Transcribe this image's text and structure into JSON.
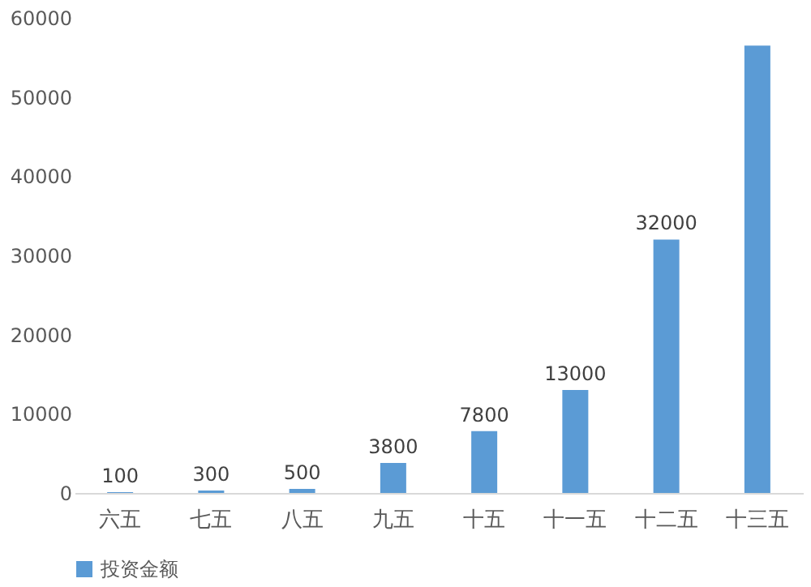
{
  "chart_data": {
    "type": "bar",
    "categories": [
      "六五",
      "七五",
      "八五",
      "九五",
      "十五",
      "十一五",
      "十二五",
      "十三五"
    ],
    "series": [
      {
        "name": "投资金额",
        "color": "#5b9bd5",
        "values": [
          100,
          300,
          500,
          3800,
          7800,
          13000,
          32000,
          56500
        ]
      }
    ],
    "value_labels": [
      "100",
      "300",
      "500",
      "3800",
      "7800",
      "13000",
      "32000",
      null
    ],
    "ylim": [
      0,
      60000
    ],
    "yticks": [
      0,
      10000,
      20000,
      30000,
      40000,
      50000,
      60000
    ],
    "grid": false,
    "legend": "bottom"
  }
}
